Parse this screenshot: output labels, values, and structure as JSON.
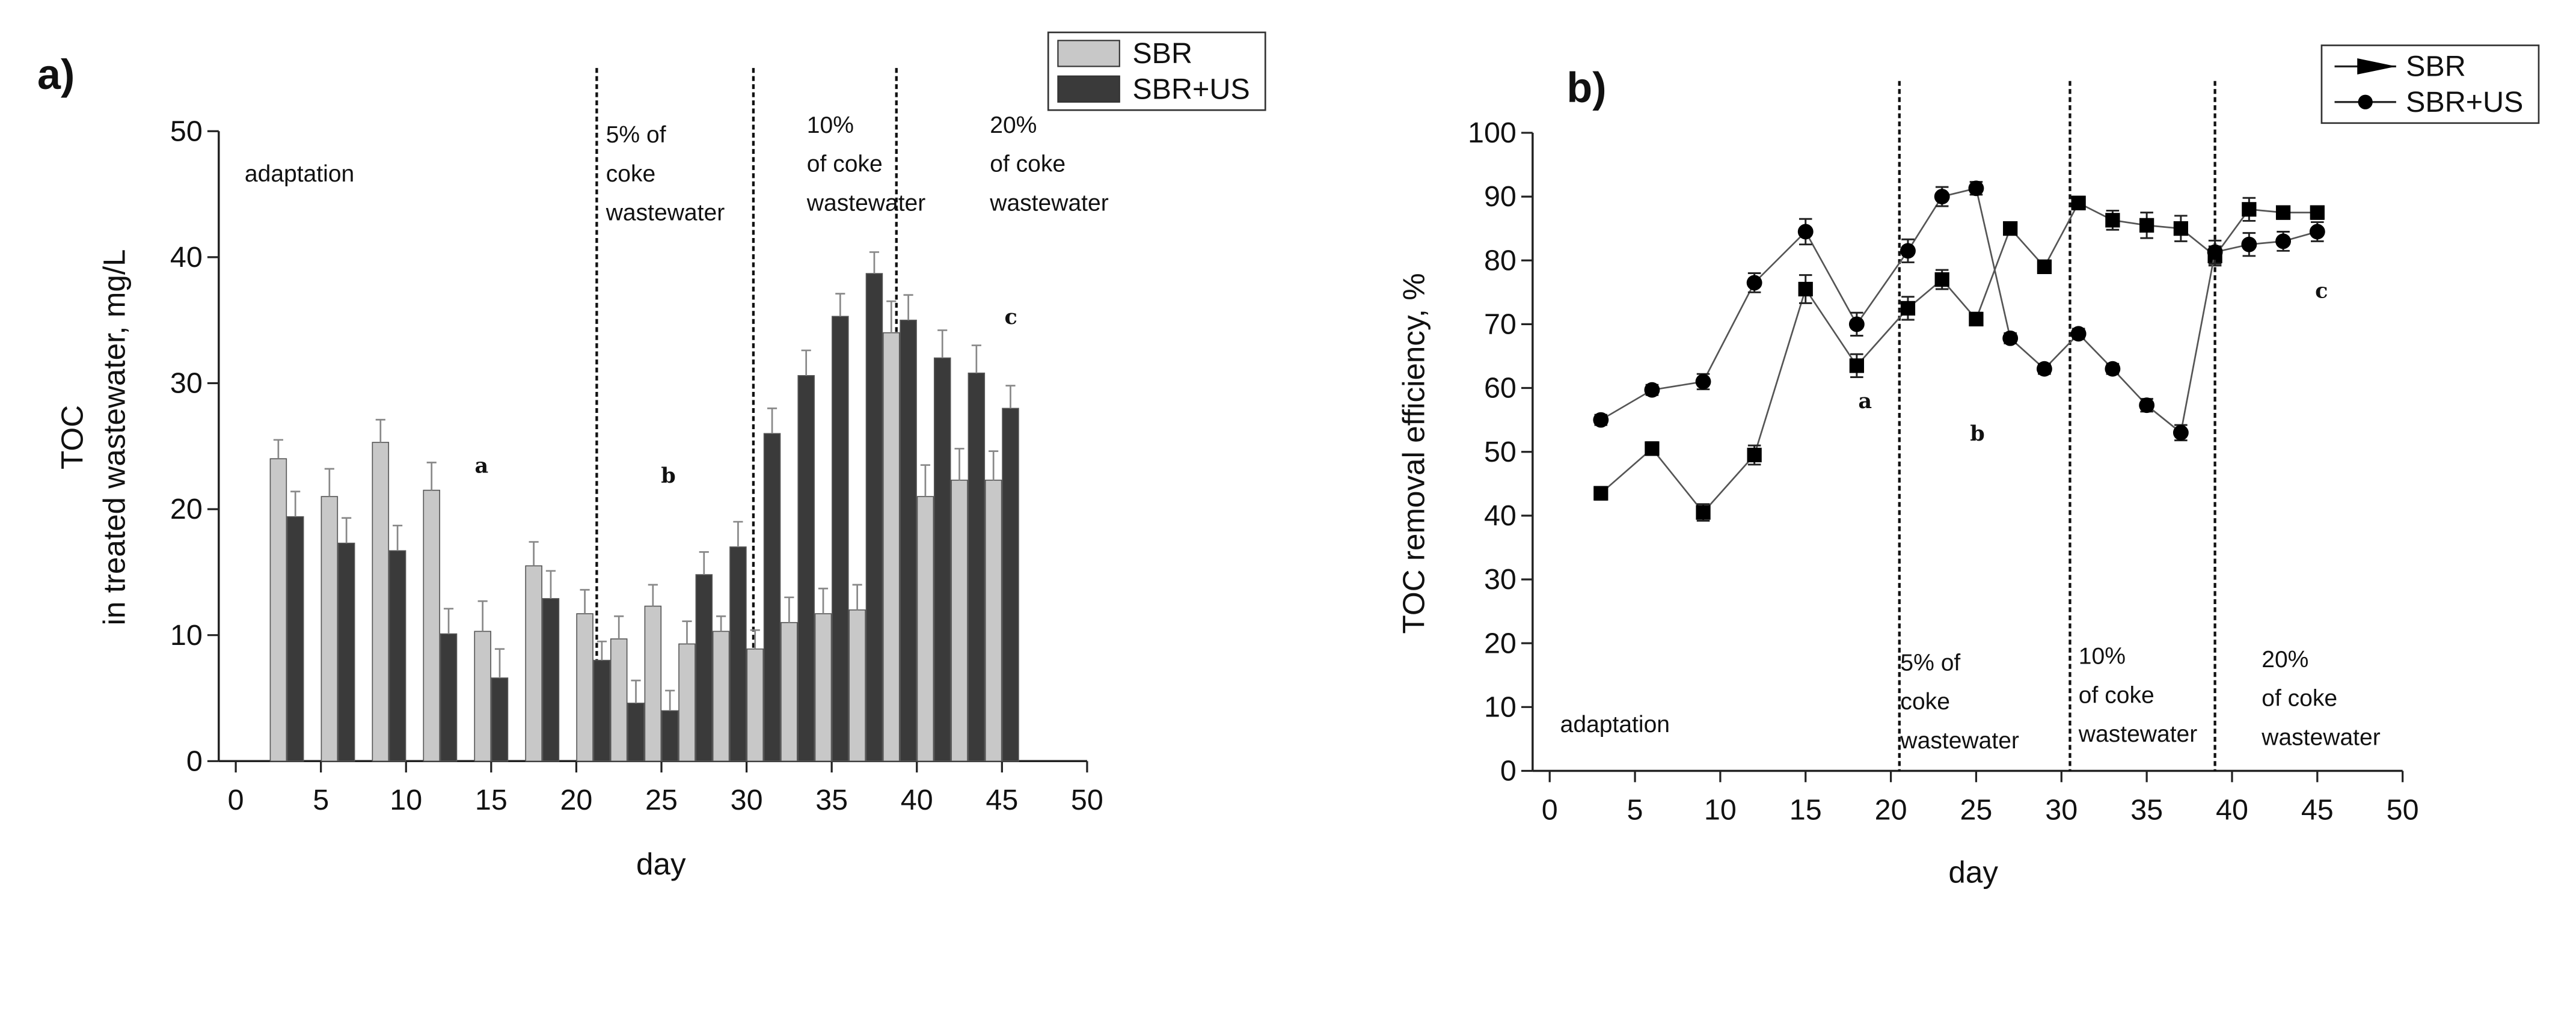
{
  "chart_data": [
    {
      "type": "bar",
      "panel": "a)",
      "ylabel": [
        "TOC",
        "in treated wastewater, mg/L"
      ],
      "xlabel": "day",
      "x": [
        3,
        6,
        9,
        12,
        15,
        18,
        21,
        23,
        25,
        27,
        29,
        31,
        33,
        35,
        37,
        39,
        41,
        43,
        45
      ],
      "series": [
        {
          "name": "SBR",
          "color": "#c8c8c8",
          "values": [
            24,
            21,
            25.3,
            21.5,
            10.3,
            15.5,
            11.7,
            9.7,
            12.3,
            9.3,
            10.3,
            8.9,
            11,
            11.7,
            12,
            34,
            21,
            22.3,
            22.3
          ],
          "errors": [
            1.5,
            2.2,
            1.8,
            2.2,
            2.4,
            1.9,
            1.9,
            1.8,
            1.7,
            1.8,
            1.2,
            1.5,
            2,
            2,
            2,
            2.5,
            2.5,
            2.5,
            2.3
          ]
        },
        {
          "name": "SBR+US",
          "color": "#3a3a3a",
          "values": [
            19.4,
            17.3,
            16.7,
            10.1,
            6.6,
            12.9,
            8,
            4.6,
            4,
            14.8,
            17,
            26,
            30.6,
            35.3,
            38.7,
            35,
            32,
            30.8,
            28
          ],
          "errors": [
            2,
            2,
            2,
            2,
            2.3,
            2.2,
            1.5,
            1.8,
            1.6,
            1.8,
            2,
            2,
            2,
            1.8,
            1.7,
            2,
            2.2,
            2.2,
            1.8
          ]
        }
      ],
      "vlines": [
        21.2,
        30.4,
        38.8
      ],
      "annotations": [
        [
          "adaptation"
        ],
        [
          "5% of",
          "coke",
          "wastewater"
        ],
        [
          "10%",
          "of coke",
          "wastewater"
        ],
        [
          "20%",
          "of coke",
          "wastewater"
        ],
        [
          "a"
        ],
        [
          "b"
        ],
        [
          "c"
        ]
      ],
      "xlim": [
        -1,
        50
      ],
      "xticks": [
        0,
        5,
        10,
        15,
        20,
        25,
        30,
        35,
        40,
        45,
        50
      ],
      "ylim": [
        0,
        50
      ],
      "yticks": [
        0,
        10,
        20,
        30,
        40,
        50
      ]
    },
    {
      "type": "line",
      "panel": "b)",
      "ylabel": [
        "TOC removal efficiency, %"
      ],
      "xlabel": "day",
      "x": [
        3,
        6,
        9,
        12,
        15,
        18,
        21,
        23,
        25,
        27,
        29,
        31,
        33,
        35,
        37,
        39,
        41,
        43,
        45
      ],
      "series": [
        {
          "name": "SBR",
          "color": "#000000",
          "marker": "square",
          "values": [
            43.5,
            50.5,
            40.5,
            49.5,
            75.5,
            63.5,
            72.5,
            77,
            70.8,
            85,
            79,
            89,
            86.3,
            85.5,
            85,
            80.7,
            88,
            87.5,
            87.5
          ],
          "errors": [
            1,
            1,
            1.3,
            1.5,
            2.2,
            1.8,
            1.8,
            1.5,
            1,
            0.8,
            1,
            1,
            1.5,
            2,
            2,
            1.5,
            1.8,
            1,
            1
          ]
        },
        {
          "name": "SBR+US",
          "color": "#000000",
          "marker": "circle",
          "values": [
            55,
            59.7,
            61,
            76.5,
            84.5,
            70,
            81.5,
            90,
            91.3,
            67.8,
            63,
            68.5,
            63,
            57.3,
            53,
            81.3,
            82.5,
            83,
            84.5
          ],
          "errors": [
            0.8,
            0.8,
            1.2,
            1.5,
            2,
            1.8,
            1.8,
            1.5,
            1,
            0.8,
            0.8,
            0.8,
            0.8,
            1,
            1.2,
            1.8,
            1.8,
            1.5,
            1.5
          ]
        }
      ],
      "vlines": [
        20.5,
        30.5,
        39
      ],
      "annotations": [
        [
          "adaptation"
        ],
        [
          "5% of",
          "coke",
          "wastewater"
        ],
        [
          "10%",
          "of coke",
          "wastewater"
        ],
        [
          "20%",
          "of coke",
          "wastewater"
        ],
        [
          "a"
        ],
        [
          "b"
        ],
        [
          "c"
        ]
      ],
      "xlim": [
        -1,
        50
      ],
      "xticks": [
        0,
        5,
        10,
        15,
        20,
        25,
        30,
        35,
        40,
        45,
        50
      ],
      "ylim": [
        0,
        100
      ],
      "yticks": [
        0,
        10,
        20,
        30,
        40,
        50,
        60,
        70,
        80,
        90,
        100
      ]
    }
  ]
}
